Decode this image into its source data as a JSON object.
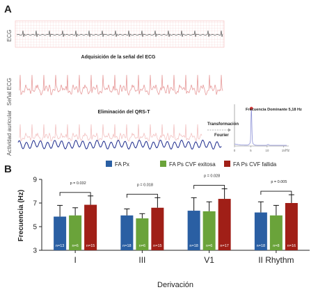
{
  "panel_a": {
    "label": "A",
    "rows": [
      {
        "side_label": "ECG",
        "title": ""
      },
      {
        "side_label": "Señal ECG",
        "title": "Adquisición de la señal del ECG"
      },
      {
        "side_label": "Actividad auricular",
        "title": "Eliminación del QRS-T"
      }
    ],
    "transform_label_1": "Transformación",
    "transform_label_2": "Fourier",
    "spectrum_peak_label": "Frecuencia Dominante 5,18 Hz",
    "spectrum_ticks": [
      "0",
      "5",
      "10",
      "15"
    ],
    "spectrum_unit": "Hz",
    "spectrum_peak_hz": 5.18,
    "colors": {
      "grid": "#f3b8b8",
      "ecg": "#e79a9a",
      "atrial": "#1c2a8c",
      "spectrum": "#8a8fd6",
      "peak": "#d33a3a"
    }
  },
  "chart_data": {
    "type": "bar",
    "panel_label": "B",
    "ylabel": "Frecuencia (Hz)",
    "xlabel": "Derivación",
    "ylim": [
      3,
      9
    ],
    "yticks": [
      3,
      5,
      7,
      9
    ],
    "categories": [
      "I",
      "III",
      "V1",
      "II Rhythm"
    ],
    "legend_position": "top",
    "series": [
      {
        "name": "FA Px",
        "color": "#2a5fa3",
        "values": [
          5.85,
          5.95,
          6.35,
          6.2
        ],
        "errors": [
          0.95,
          0.55,
          1.1,
          0.9
        ],
        "n": [
          "n=13",
          "n=18",
          "n=18",
          "n=18"
        ]
      },
      {
        "name": "FA Ps CVF exitosa",
        "color": "#6aa33a",
        "values": [
          5.95,
          5.7,
          6.3,
          5.95
        ],
        "errors": [
          0.65,
          0.4,
          0.8,
          0.85
        ],
        "n": [
          "n=6",
          "n=6",
          "n=6",
          "n=8"
        ]
      },
      {
        "name": "FA Ps CVF fallida",
        "color": "#a01f17",
        "values": [
          6.85,
          6.6,
          7.35,
          7.0
        ],
        "errors": [
          0.75,
          0.85,
          0.85,
          0.7
        ],
        "n": [
          "n=15",
          "n=15",
          "n=17",
          "n=16"
        ]
      }
    ],
    "pvalues": [
      "p = 0.032",
      "p = 0.018",
      "p = 0.028",
      "p = 0.005"
    ]
  }
}
